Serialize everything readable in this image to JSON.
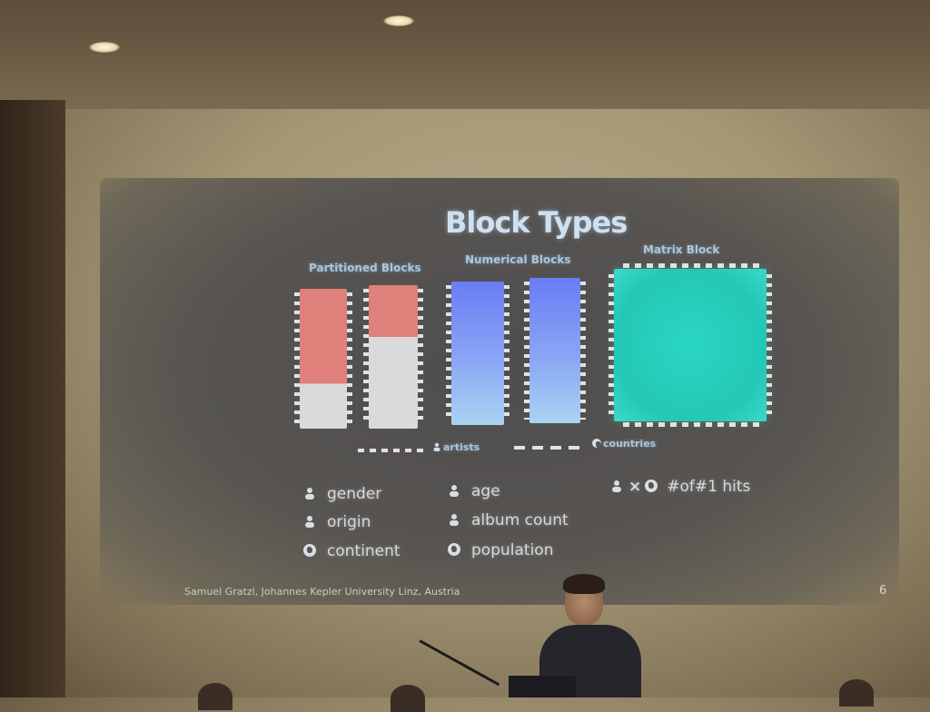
{
  "slide": {
    "title": "Block Types",
    "captions": {
      "partitioned": "Partitioned Blocks",
      "numerical": "Numerical Blocks",
      "matrix": "Matrix Block"
    },
    "axis_labels": {
      "artists": "artists",
      "countries": "countries"
    },
    "legend": {
      "col1": [
        "gender",
        "origin",
        "continent"
      ],
      "col2": [
        "age",
        "album count",
        "population"
      ],
      "col3": "#of#1 hits"
    },
    "footer": "Samuel Gratzl, Johannes Kepler University Linz, Austria",
    "page_number": "6"
  },
  "colors": {
    "salmon": "#e0807a",
    "light_grey": "#d9dadb",
    "blue_top": "#6a7cf5",
    "blue_bottom": "#a9d4f3",
    "teal": "#27d1bf"
  }
}
